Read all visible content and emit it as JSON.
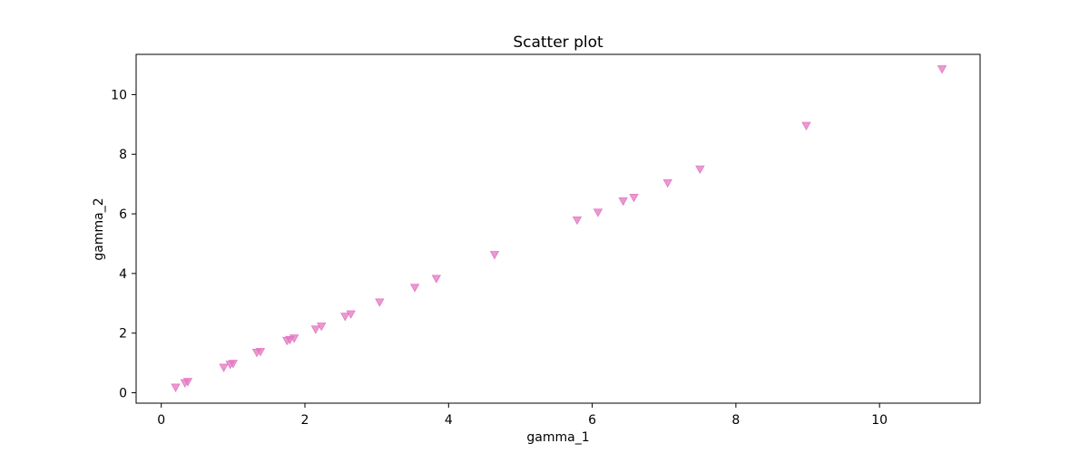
{
  "chart_data": {
    "type": "scatter",
    "title": "Scatter plot",
    "xlabel": "gamma_1",
    "ylabel": "gamma_2",
    "xlim": [
      -0.35,
      11.4
    ],
    "ylim": [
      -0.35,
      11.35
    ],
    "xticks": [
      0,
      2,
      4,
      6,
      8,
      10
    ],
    "yticks": [
      0,
      2,
      4,
      6,
      8,
      10
    ],
    "grid": false,
    "marker": "triangle-down",
    "color": "#e377c2",
    "points": [
      {
        "x": 0.2,
        "y": 0.18
      },
      {
        "x": 0.33,
        "y": 0.33
      },
      {
        "x": 0.37,
        "y": 0.37
      },
      {
        "x": 0.87,
        "y": 0.85
      },
      {
        "x": 0.96,
        "y": 0.95
      },
      {
        "x": 1.0,
        "y": 0.98
      },
      {
        "x": 1.33,
        "y": 1.35
      },
      {
        "x": 1.38,
        "y": 1.38
      },
      {
        "x": 1.75,
        "y": 1.75
      },
      {
        "x": 1.79,
        "y": 1.78
      },
      {
        "x": 1.85,
        "y": 1.83
      },
      {
        "x": 2.15,
        "y": 2.13
      },
      {
        "x": 2.23,
        "y": 2.23
      },
      {
        "x": 2.56,
        "y": 2.56
      },
      {
        "x": 2.64,
        "y": 2.64
      },
      {
        "x": 3.04,
        "y": 3.04
      },
      {
        "x": 3.53,
        "y": 3.53
      },
      {
        "x": 3.83,
        "y": 3.83
      },
      {
        "x": 4.64,
        "y": 4.63
      },
      {
        "x": 5.79,
        "y": 5.79
      },
      {
        "x": 6.08,
        "y": 6.05
      },
      {
        "x": 6.43,
        "y": 6.43
      },
      {
        "x": 6.58,
        "y": 6.55
      },
      {
        "x": 7.05,
        "y": 7.04
      },
      {
        "x": 7.5,
        "y": 7.5
      },
      {
        "x": 8.98,
        "y": 8.96
      },
      {
        "x": 10.87,
        "y": 10.86
      }
    ]
  }
}
